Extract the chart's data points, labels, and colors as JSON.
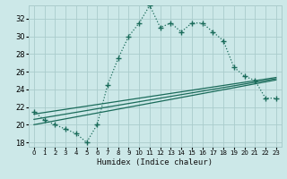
{
  "xlabel": "Humidex (Indice chaleur)",
  "background_color": "#cce8e8",
  "grid_color": "#aacccc",
  "line_color": "#1a6b5a",
  "xlim": [
    -0.5,
    23.5
  ],
  "ylim": [
    17.5,
    33.5
  ],
  "xticks": [
    0,
    1,
    2,
    3,
    4,
    5,
    6,
    7,
    8,
    9,
    10,
    11,
    12,
    13,
    14,
    15,
    16,
    17,
    18,
    19,
    20,
    21,
    22,
    23
  ],
  "yticks": [
    18,
    20,
    22,
    24,
    26,
    28,
    30,
    32
  ],
  "main_y": [
    21.5,
    20.5,
    20.0,
    19.5,
    19.0,
    18.0,
    20.0,
    24.5,
    27.5,
    30.0,
    31.5,
    33.5,
    31.0,
    31.5,
    30.5,
    31.5,
    31.5,
    30.5,
    29.5,
    26.5,
    25.5,
    25.0,
    23.0,
    23.0
  ],
  "line1_y": [
    20.0,
    20.22,
    20.44,
    20.66,
    20.88,
    21.1,
    21.32,
    21.54,
    21.76,
    21.98,
    22.2,
    22.42,
    22.64,
    22.86,
    23.08,
    23.3,
    23.52,
    23.74,
    23.96,
    24.18,
    24.4,
    24.62,
    24.84,
    25.06
  ],
  "line2_y": [
    20.6,
    20.8,
    21.0,
    21.2,
    21.4,
    21.6,
    21.8,
    22.0,
    22.2,
    22.4,
    22.6,
    22.8,
    23.0,
    23.2,
    23.4,
    23.6,
    23.8,
    24.0,
    24.2,
    24.4,
    24.6,
    24.8,
    25.0,
    25.2
  ],
  "line3_y": [
    21.2,
    21.38,
    21.56,
    21.74,
    21.92,
    22.1,
    22.28,
    22.46,
    22.64,
    22.82,
    23.0,
    23.18,
    23.36,
    23.54,
    23.72,
    23.9,
    24.08,
    24.26,
    24.44,
    24.62,
    24.8,
    24.98,
    25.16,
    25.34
  ]
}
